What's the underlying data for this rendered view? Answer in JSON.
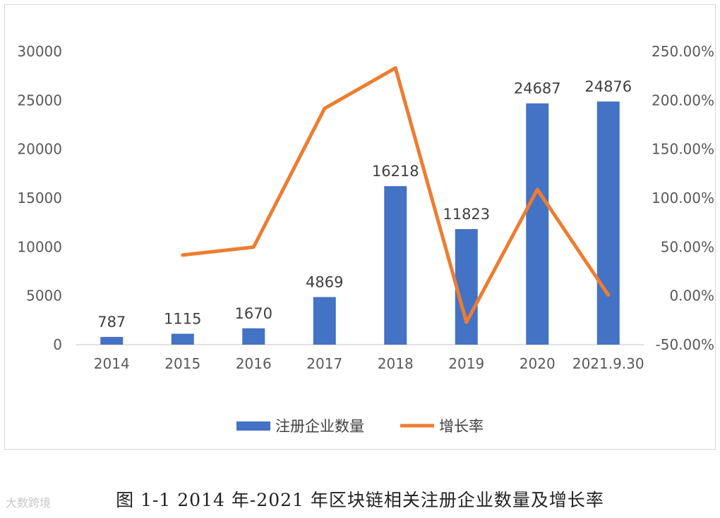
{
  "chart_data": {
    "type": "bar+line",
    "categories": [
      "2014",
      "2015",
      "2016",
      "2017",
      "2018",
      "2019",
      "2020",
      "2021.9.30"
    ],
    "series": [
      {
        "name": "注册企业数量",
        "type": "bar",
        "axis": "left",
        "color": "#4472C4",
        "values": [
          787,
          1115,
          1670,
          4869,
          16218,
          11823,
          24687,
          24876
        ]
      },
      {
        "name": "增长率",
        "type": "line",
        "axis": "right",
        "color": "#ED7D31",
        "values": [
          null,
          41.7,
          49.8,
          191.6,
          233.1,
          -27.1,
          108.8,
          0.8
        ]
      }
    ],
    "yleft": {
      "min": 0,
      "max": 30000,
      "ticks": [
        "0",
        "5000",
        "10000",
        "15000",
        "20000",
        "25000",
        "30000"
      ]
    },
    "yright": {
      "min": -50,
      "max": 250,
      "ticks": [
        "-50.00%",
        "0.00%",
        "50.00%",
        "100.00%",
        "150.00%",
        "200.00%",
        "250.00%"
      ]
    },
    "data_labels": [
      "787",
      "1115",
      "1670",
      "4869",
      "16218",
      "11823",
      "24687",
      "24876"
    ],
    "grid": false,
    "legend": "bottom"
  },
  "caption": "图 1-1 2014 年-2021 年区块链相关注册企业数量及增长率",
  "watermark": "大数跨境"
}
